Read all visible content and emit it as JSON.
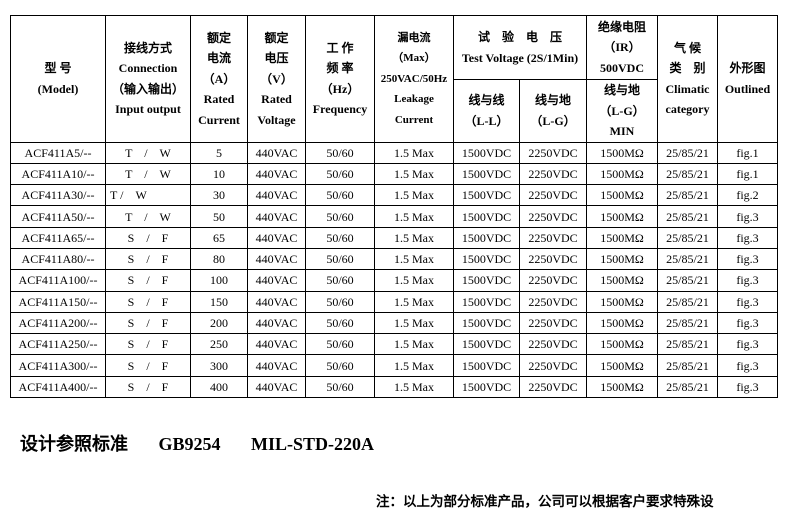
{
  "header": {
    "model": [
      "型 号",
      "(Model)"
    ],
    "connection": [
      "接线方式",
      "Connection",
      "（输入输出）",
      "Input output"
    ],
    "current": [
      "额定",
      "电流",
      "（A）",
      "Rated",
      "Current"
    ],
    "voltage": [
      "额定",
      "电压",
      "（V）",
      "Rated",
      "Voltage"
    ],
    "frequency": [
      "工 作",
      "频 率",
      "（Hz）",
      "Frequency"
    ],
    "leakage": [
      "漏电流",
      "（Max）",
      "250VAC/50Hz",
      "Leakage",
      "Current"
    ],
    "test_voltage": [
      "试　验　电　压",
      "Test Voltage (2S/1Min)"
    ],
    "ll": [
      "线与线",
      "（L-L）"
    ],
    "lg": [
      "线与地",
      "（L-G）"
    ],
    "ir": [
      "绝缘电阻",
      "（IR）",
      "500VDC"
    ],
    "ir_sub": [
      "线与地",
      "（L-G）",
      "MIN"
    ],
    "climatic": [
      "气 候",
      "类　别",
      "Climatic",
      "category"
    ],
    "outline": [
      "外形图",
      "Outlined"
    ]
  },
  "rows": [
    [
      "ACF411A5/--",
      "T　/　W",
      "5",
      "440VAC",
      "50/60",
      "1.5 Max",
      "1500VDC",
      "2250VDC",
      "1500MΩ",
      "25/85/21",
      "fig.1"
    ],
    [
      "ACF411A10/--",
      "T　/　W",
      "10",
      "440VAC",
      "50/60",
      "1.5 Max",
      "1500VDC",
      "2250VDC",
      "1500MΩ",
      "25/85/21",
      "fig.1"
    ],
    [
      "ACF411A30/--",
      "T /　W",
      "30",
      "440VAC",
      "50/60",
      "1.5 Max",
      "1500VDC",
      "2250VDC",
      "1500MΩ",
      "25/85/21",
      "fig.2"
    ],
    [
      "ACF411A50/--",
      "T　/　W",
      "50",
      "440VAC",
      "50/60",
      "1.5 Max",
      "1500VDC",
      "2250VDC",
      "1500MΩ",
      "25/85/21",
      "fig.3"
    ],
    [
      "ACF411A65/--",
      "S　/　F",
      "65",
      "440VAC",
      "50/60",
      "1.5 Max",
      "1500VDC",
      "2250VDC",
      "1500MΩ",
      "25/85/21",
      "fig.3"
    ],
    [
      "ACF411A80/--",
      "S　/　F",
      "80",
      "440VAC",
      "50/60",
      "1.5 Max",
      "1500VDC",
      "2250VDC",
      "1500MΩ",
      "25/85/21",
      "fig.3"
    ],
    [
      "ACF411A100/--",
      "S　/　F",
      "100",
      "440VAC",
      "50/60",
      "1.5 Max",
      "1500VDC",
      "2250VDC",
      "1500MΩ",
      "25/85/21",
      "fig.3"
    ],
    [
      "ACF411A150/--",
      "S　/　F",
      "150",
      "440VAC",
      "50/60",
      "1.5 Max",
      "1500VDC",
      "2250VDC",
      "1500MΩ",
      "25/85/21",
      "fig.3"
    ],
    [
      "ACF411A200/--",
      "S　/　F",
      "200",
      "440VAC",
      "50/60",
      "1.5 Max",
      "1500VDC",
      "2250VDC",
      "1500MΩ",
      "25/85/21",
      "fig.3"
    ],
    [
      "ACF411A250/--",
      "S　/　F",
      "250",
      "440VAC",
      "50/60",
      "1.5 Max",
      "1500VDC",
      "2250VDC",
      "1500MΩ",
      "25/85/21",
      "fig.3"
    ],
    [
      "ACF411A300/--",
      "S　/　F",
      "300",
      "440VAC",
      "50/60",
      "1.5 Max",
      "1500VDC",
      "2250VDC",
      "1500MΩ",
      "25/85/21",
      "fig.3"
    ],
    [
      "ACF411A400/--",
      "S　/　F",
      "400",
      "440VAC",
      "50/60",
      "1.5 Max",
      "1500VDC",
      "2250VDC",
      "1500MΩ",
      "25/85/21",
      "fig.3"
    ]
  ],
  "standards": [
    "设计参照标准",
    "GB9254",
    "MIL-STD-220A"
  ],
  "note": "注：以上为部分标准产品，公司可以根据客户要求特殊设"
}
